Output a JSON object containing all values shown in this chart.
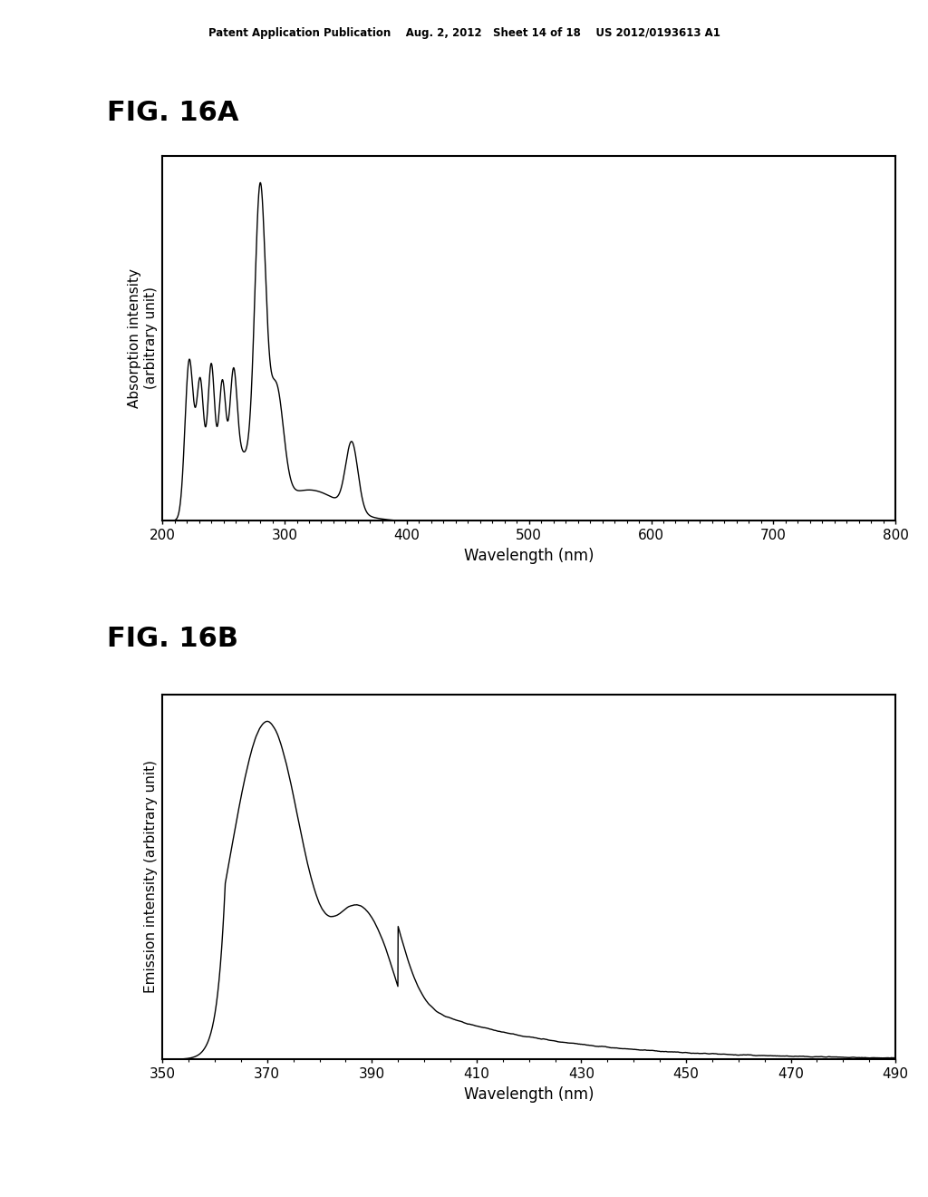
{
  "header_text": "Patent Application Publication    Aug. 2, 2012   Sheet 14 of 18    US 2012/0193613 A1",
  "fig_label_A": "FIG. 16A",
  "fig_label_B": "FIG. 16B",
  "plot_A": {
    "xlabel": "Wavelength (nm)",
    "ylabel": "Absorption intensity\n(arbitrary unit)",
    "xlim": [
      200,
      800
    ],
    "xticks": [
      200,
      300,
      400,
      500,
      600,
      700,
      800
    ],
    "xticklabels": [
      "200",
      "300",
      "400",
      "500",
      "600",
      "700",
      "800"
    ]
  },
  "plot_B": {
    "xlabel": "Wavelength (nm)",
    "ylabel": "Emission intensity (arbitrary unit)",
    "xlim": [
      350,
      490
    ],
    "xticks": [
      350,
      370,
      390,
      410,
      430,
      450,
      470,
      490
    ],
    "xticklabels": [
      "350",
      "370",
      "390",
      "410",
      "430",
      "450",
      "470",
      "490"
    ]
  },
  "background_color": "#ffffff",
  "line_color": "#000000"
}
